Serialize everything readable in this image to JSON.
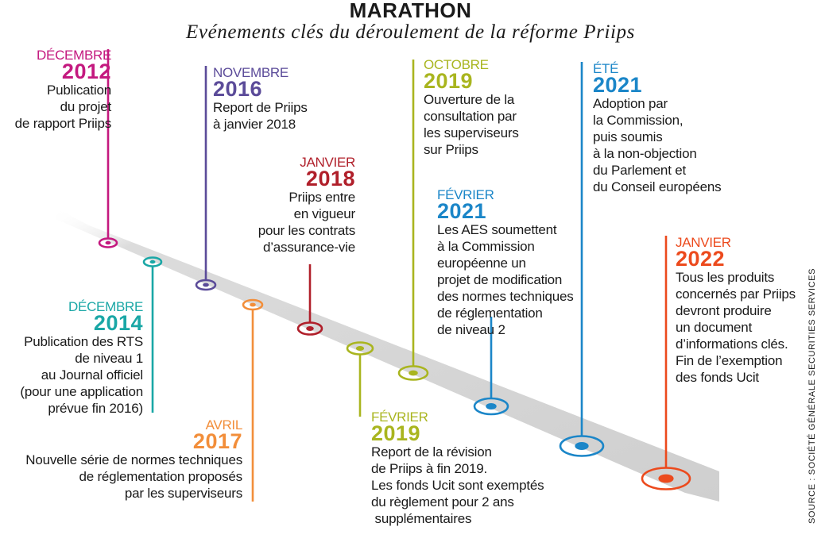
{
  "title": "MARATHON",
  "subtitle": "Evénements clés du déroulement de la réforme Priips",
  "source": "SOURCE : SOCIÉTÉ GÉNÉRALE SECURITIES SERVICES",
  "events": [
    {
      "id": "dec2012",
      "month": "DÉCEMBRE",
      "year": "2012",
      "color": "#c4197f",
      "text": "Publication\ndu projet\nde rapport Priips"
    },
    {
      "id": "dec2014",
      "month": "DÉCEMBRE",
      "year": "2014",
      "color": "#1aa7a6",
      "text": "Publication des RTS\nde niveau 1\nau Journal officiel\n(pour une application\nprévue fin 2016)"
    },
    {
      "id": "nov2016",
      "month": "NOVEMBRE",
      "year": "2016",
      "color": "#5b4b99",
      "text": "Report de Priips\nà janvier 2018"
    },
    {
      "id": "avr2017",
      "month": "AVRIL",
      "year": "2017",
      "color": "#f28e3a",
      "text": "Nouvelle série de normes techniques\nde réglementation proposés\npar les superviseurs"
    },
    {
      "id": "jan2018",
      "month": "JANVIER",
      "year": "2018",
      "color": "#b01f2a",
      "text": "Priips entre\nen vigueur\npour les contrats\nd’assurance-vie"
    },
    {
      "id": "fev2019",
      "month": "FÉVRIER",
      "year": "2019",
      "color": "#a9b51f",
      "text": "Report de la révision\nde Priips à fin 2019.\nLes fonds Ucit sont exemptés\ndu règlement pour 2 ans\n supplémentaires"
    },
    {
      "id": "oct2019",
      "month": "OCTOBRE",
      "year": "2019",
      "color": "#a9b51f",
      "text": "Ouverture de la\nconsultation par\nles superviseurs\nsur Priips"
    },
    {
      "id": "fev2021",
      "month": "FÉVRIER",
      "year": "2021",
      "color": "#1b86c8",
      "text": "Les AES soumettent\nà la Commission\neuropéenne un\nprojet de modification\ndes normes techniques\nde réglementation\nde niveau 2"
    },
    {
      "id": "ete2021",
      "month": "ÉTÉ",
      "year": "2021",
      "color": "#1b86c8",
      "text": "Adoption par\nla Commission,\npuis soumis\nà la non-objection\ndu Parlement et\ndu Conseil européens"
    },
    {
      "id": "jan2022",
      "month": "JANVIER",
      "year": "2022",
      "color": "#ec4a1d",
      "text": "Tous les produits\nconcernés par Priips\ndevront produire\nun document\nd’informations clés.\nFin de l’exemption\ndes fonds Ucit"
    }
  ]
}
